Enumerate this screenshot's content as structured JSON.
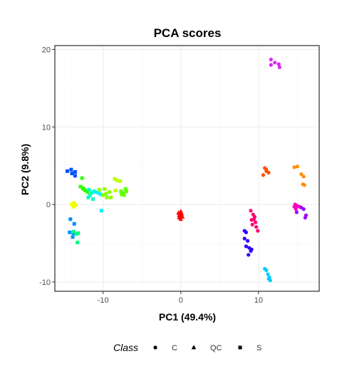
{
  "chart_data": {
    "type": "scatter",
    "title": "PCA scores",
    "xlabel": "PC1 (49.4%)",
    "ylabel": "PC2 (9.8%)",
    "xlim": [
      -16.2,
      17.8
    ],
    "ylim": [
      -11.2,
      20.5
    ],
    "xticks": [
      -10,
      0,
      10
    ],
    "yticks": [
      -10,
      0,
      10,
      20
    ],
    "xtick_labels": [
      "-10",
      "0",
      "10"
    ],
    "ytick_labels": [
      "-10",
      "0",
      "10",
      "20"
    ],
    "grid": true,
    "legend": {
      "title": "Class",
      "position": "bottom",
      "items": [
        {
          "label": "C",
          "shape": "circle"
        },
        {
          "label": "QC",
          "shape": "triangle"
        },
        {
          "label": "S",
          "shape": "square"
        }
      ]
    },
    "points": [
      {
        "x": -14.6,
        "y": 4.3,
        "class": "S",
        "color": "#0050ff"
      },
      {
        "x": -14.1,
        "y": 4.5,
        "class": "S",
        "color": "#0050ff"
      },
      {
        "x": -14.0,
        "y": 4.0,
        "class": "S",
        "color": "#0050ff"
      },
      {
        "x": -13.6,
        "y": 4.2,
        "class": "S",
        "color": "#0050ff"
      },
      {
        "x": -13.6,
        "y": 3.7,
        "class": "S",
        "color": "#0050ff"
      },
      {
        "x": -14.2,
        "y": -1.9,
        "class": "S",
        "color": "#0090ff"
      },
      {
        "x": -13.7,
        "y": -2.5,
        "class": "S",
        "color": "#0090ff"
      },
      {
        "x": -14.3,
        "y": -3.6,
        "class": "S",
        "color": "#0090ff"
      },
      {
        "x": -13.9,
        "y": -4.2,
        "class": "S",
        "color": "#0090ff"
      },
      {
        "x": -13.8,
        "y": -3.7,
        "class": "S",
        "color": "#0090ff"
      },
      {
        "x": -13.4,
        "y": -3.8,
        "class": "S",
        "color": "#00ff80"
      },
      {
        "x": -13.2,
        "y": -3.7,
        "class": "S",
        "color": "#00ff80"
      },
      {
        "x": -13.3,
        "y": -4.9,
        "class": "S",
        "color": "#00ff80"
      },
      {
        "x": -13.8,
        "y": -3.5,
        "class": "S",
        "color": "#00ff80"
      },
      {
        "x": -14.0,
        "y": 0.0,
        "class": "S",
        "color": "#f0ff00"
      },
      {
        "x": -13.7,
        "y": 0.2,
        "class": "S",
        "color": "#f0ff00"
      },
      {
        "x": -13.5,
        "y": -0.1,
        "class": "S",
        "color": "#f0ff00"
      },
      {
        "x": -13.8,
        "y": -0.3,
        "class": "S",
        "color": "#f0ff00"
      },
      {
        "x": -13.9,
        "y": 0.1,
        "class": "S",
        "color": "#f0ff00"
      },
      {
        "x": -12.7,
        "y": 3.4,
        "class": "S",
        "color": "#30ff00"
      },
      {
        "x": -12.9,
        "y": 2.3,
        "class": "S",
        "color": "#30ff00"
      },
      {
        "x": -12.6,
        "y": 2.1,
        "class": "S",
        "color": "#30ff00"
      },
      {
        "x": -12.3,
        "y": 1.8,
        "class": "S",
        "color": "#30ff00"
      },
      {
        "x": -12.0,
        "y": 1.6,
        "class": "S",
        "color": "#30ff00"
      },
      {
        "x": -12.5,
        "y": 2.0,
        "class": "S",
        "color": "#30ff00"
      },
      {
        "x": -11.8,
        "y": 1.9,
        "class": "S",
        "color": "#00ffc0"
      },
      {
        "x": -11.5,
        "y": 1.5,
        "class": "S",
        "color": "#00ffc0"
      },
      {
        "x": -11.7,
        "y": 1.2,
        "class": "S",
        "color": "#00ffc0"
      },
      {
        "x": -11.2,
        "y": 1.7,
        "class": "S",
        "color": "#00ffc0"
      },
      {
        "x": -11.9,
        "y": 0.9,
        "class": "S",
        "color": "#00ffc0"
      },
      {
        "x": -11.3,
        "y": 0.7,
        "class": "S",
        "color": "#00ffc0"
      },
      {
        "x": -11.0,
        "y": 1.6,
        "class": "S",
        "color": "#00f0ff"
      },
      {
        "x": -10.6,
        "y": 1.5,
        "class": "S",
        "color": "#00f0ff"
      },
      {
        "x": -10.3,
        "y": 1.3,
        "class": "S",
        "color": "#00f0ff"
      },
      {
        "x": -10.2,
        "y": -0.8,
        "class": "S",
        "color": "#00f0ff"
      },
      {
        "x": -10.5,
        "y": 1.9,
        "class": "S",
        "color": "#90ff00"
      },
      {
        "x": -10.0,
        "y": 1.2,
        "class": "S",
        "color": "#90ff00"
      },
      {
        "x": -9.8,
        "y": 2.0,
        "class": "S",
        "color": "#90ff00"
      },
      {
        "x": -9.6,
        "y": 1.4,
        "class": "S",
        "color": "#90ff00"
      },
      {
        "x": -9.2,
        "y": 1.6,
        "class": "S",
        "color": "#90ff00"
      },
      {
        "x": -9.0,
        "y": 0.9,
        "class": "S",
        "color": "#90ff00"
      },
      {
        "x": -9.5,
        "y": 0.9,
        "class": "S",
        "color": "#90ff00"
      },
      {
        "x": -8.5,
        "y": 3.3,
        "class": "S",
        "color": "#c0ff00"
      },
      {
        "x": -8.2,
        "y": 3.1,
        "class": "S",
        "color": "#c0ff00"
      },
      {
        "x": -7.8,
        "y": 3.0,
        "class": "S",
        "color": "#c0ff00"
      },
      {
        "x": -8.4,
        "y": 1.8,
        "class": "S",
        "color": "#c0ff00"
      },
      {
        "x": -7.7,
        "y": 1.7,
        "class": "S",
        "color": "#60ff00"
      },
      {
        "x": -7.4,
        "y": 1.5,
        "class": "S",
        "color": "#60ff00"
      },
      {
        "x": -7.1,
        "y": 2.0,
        "class": "S",
        "color": "#60ff00"
      },
      {
        "x": -7.3,
        "y": 1.2,
        "class": "S",
        "color": "#60ff00"
      },
      {
        "x": -7.0,
        "y": 1.7,
        "class": "S",
        "color": "#60ff00"
      },
      {
        "x": -7.6,
        "y": 1.3,
        "class": "S",
        "color": "#60ff00"
      },
      {
        "x": -0.3,
        "y": -1.1,
        "class": "QC",
        "color": "#ff0000"
      },
      {
        "x": -0.1,
        "y": -1.4,
        "class": "QC",
        "color": "#ff0000"
      },
      {
        "x": 0.1,
        "y": -1.2,
        "class": "QC",
        "color": "#ff0000"
      },
      {
        "x": -0.2,
        "y": -1.7,
        "class": "QC",
        "color": "#ff0000"
      },
      {
        "x": 0.0,
        "y": -1.9,
        "class": "QC",
        "color": "#ff0000"
      },
      {
        "x": 0.2,
        "y": -1.6,
        "class": "QC",
        "color": "#ff0000"
      },
      {
        "x": 0.0,
        "y": -0.9,
        "class": "QC",
        "color": "#ff0000"
      },
      {
        "x": -0.2,
        "y": -1.4,
        "class": "QC",
        "color": "#ff0000"
      },
      {
        "x": 11.6,
        "y": 18.7,
        "class": "C",
        "color": "#e020ff"
      },
      {
        "x": 11.6,
        "y": 18.0,
        "class": "C",
        "color": "#e020ff"
      },
      {
        "x": 12.1,
        "y": 18.3,
        "class": "C",
        "color": "#e020ff"
      },
      {
        "x": 12.6,
        "y": 18.1,
        "class": "C",
        "color": "#e020ff"
      },
      {
        "x": 12.7,
        "y": 17.7,
        "class": "C",
        "color": "#e020ff"
      },
      {
        "x": 10.8,
        "y": 4.7,
        "class": "C",
        "color": "#ff5000"
      },
      {
        "x": 11.0,
        "y": 4.3,
        "class": "C",
        "color": "#ff5000"
      },
      {
        "x": 11.3,
        "y": 4.1,
        "class": "C",
        "color": "#ff5000"
      },
      {
        "x": 10.6,
        "y": 3.8,
        "class": "C",
        "color": "#ff5000"
      },
      {
        "x": 11.0,
        "y": 4.5,
        "class": "C",
        "color": "#ff5000"
      },
      {
        "x": 14.6,
        "y": 4.8,
        "class": "C",
        "color": "#ff9000"
      },
      {
        "x": 15.0,
        "y": 4.9,
        "class": "C",
        "color": "#ff9000"
      },
      {
        "x": 15.5,
        "y": 3.9,
        "class": "C",
        "color": "#ff9000"
      },
      {
        "x": 15.8,
        "y": 3.6,
        "class": "C",
        "color": "#ff9000"
      },
      {
        "x": 15.7,
        "y": 2.6,
        "class": "C",
        "color": "#ff9000"
      },
      {
        "x": 15.9,
        "y": 2.5,
        "class": "C",
        "color": "#ff9000"
      },
      {
        "x": 14.7,
        "y": 0.0,
        "class": "C",
        "color": "#ff00c0"
      },
      {
        "x": 15.0,
        "y": -0.2,
        "class": "C",
        "color": "#ff00c0"
      },
      {
        "x": 14.8,
        "y": -0.6,
        "class": "C",
        "color": "#ff00c0"
      },
      {
        "x": 15.3,
        "y": -0.3,
        "class": "C",
        "color": "#ff00c0"
      },
      {
        "x": 14.6,
        "y": -0.3,
        "class": "C",
        "color": "#ff00c0"
      },
      {
        "x": 14.9,
        "y": -1.0,
        "class": "C",
        "color": "#a000ff"
      },
      {
        "x": 15.5,
        "y": -0.4,
        "class": "C",
        "color": "#a000ff"
      },
      {
        "x": 15.8,
        "y": -0.6,
        "class": "C",
        "color": "#a000ff"
      },
      {
        "x": 16.1,
        "y": -1.4,
        "class": "C",
        "color": "#a000ff"
      },
      {
        "x": 16.0,
        "y": -1.7,
        "class": "C",
        "color": "#a000ff"
      },
      {
        "x": 9.0,
        "y": -0.8,
        "class": "C",
        "color": "#ff0070"
      },
      {
        "x": 9.3,
        "y": -1.3,
        "class": "C",
        "color": "#ff0070"
      },
      {
        "x": 9.1,
        "y": -2.0,
        "class": "C",
        "color": "#ff0070"
      },
      {
        "x": 9.5,
        "y": -1.6,
        "class": "C",
        "color": "#ff0070"
      },
      {
        "x": 9.6,
        "y": -2.3,
        "class": "C",
        "color": "#ff0070"
      },
      {
        "x": 9.2,
        "y": -2.6,
        "class": "C",
        "color": "#ff0070"
      },
      {
        "x": 9.7,
        "y": -2.9,
        "class": "C",
        "color": "#ff0070"
      },
      {
        "x": 9.9,
        "y": -3.4,
        "class": "C",
        "color": "#ff0070"
      },
      {
        "x": 9.4,
        "y": -1.9,
        "class": "C",
        "color": "#ff0070"
      },
      {
        "x": 8.2,
        "y": -3.4,
        "class": "C",
        "color": "#3000ff"
      },
      {
        "x": 8.4,
        "y": -3.6,
        "class": "C",
        "color": "#3000ff"
      },
      {
        "x": 8.2,
        "y": -4.4,
        "class": "C",
        "color": "#3000ff"
      },
      {
        "x": 8.6,
        "y": -4.7,
        "class": "C",
        "color": "#3000ff"
      },
      {
        "x": 8.4,
        "y": -5.4,
        "class": "C",
        "color": "#3000ff"
      },
      {
        "x": 8.8,
        "y": -5.6,
        "class": "C",
        "color": "#3000ff"
      },
      {
        "x": 9.0,
        "y": -6.0,
        "class": "C",
        "color": "#3000ff"
      },
      {
        "x": 8.7,
        "y": -6.5,
        "class": "C",
        "color": "#3000ff"
      },
      {
        "x": 9.1,
        "y": -5.8,
        "class": "C",
        "color": "#3000ff"
      },
      {
        "x": 10.8,
        "y": -8.3,
        "class": "C",
        "color": "#00ccff"
      },
      {
        "x": 11.0,
        "y": -8.5,
        "class": "C",
        "color": "#00ccff"
      },
      {
        "x": 11.2,
        "y": -9.0,
        "class": "C",
        "color": "#00ccff"
      },
      {
        "x": 11.4,
        "y": -9.4,
        "class": "C",
        "color": "#00ccff"
      },
      {
        "x": 11.5,
        "y": -9.8,
        "class": "C",
        "color": "#00ccff"
      },
      {
        "x": 11.3,
        "y": -9.6,
        "class": "C",
        "color": "#00ccff"
      }
    ]
  }
}
